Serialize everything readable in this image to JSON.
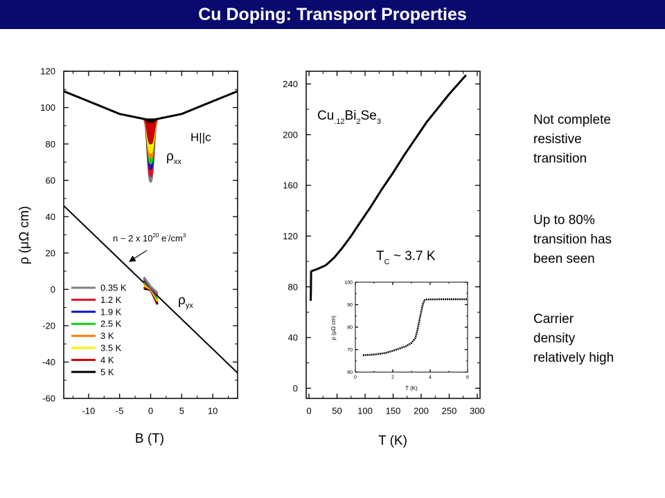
{
  "slide": {
    "title": "Cu Doping: Transport Properties",
    "colors": {
      "title_bar": "#0a0a6e",
      "title_text": "#ffffff"
    }
  },
  "notes": [
    [
      "Not complete",
      "resistive",
      "transition"
    ],
    [
      "Up to 80%",
      "transition has",
      "been seen"
    ],
    [
      "Carrier",
      "density",
      "relatively high"
    ]
  ],
  "chart_data": [
    {
      "type": "line",
      "xlabel": "B (T)",
      "ylabel": "ρ (μΩ cm)",
      "xlim": [
        -14,
        14
      ],
      "ylim": [
        -60,
        120
      ],
      "xticks": [
        -10,
        -5,
        0,
        5,
        10
      ],
      "yticks": [
        -60,
        -40,
        -20,
        0,
        20,
        40,
        60,
        80,
        100,
        120
      ],
      "grid": false,
      "legend_position": "bottom-left",
      "annotations": {
        "field_direction": "H||c",
        "rho_xx": {
          "base": "ρ",
          "sub": "xx"
        },
        "rho_yx": {
          "base": "ρ",
          "sub": "yx"
        },
        "carrier": {
          "prefix": "n ~ 2 x 10",
          "exp": "20",
          "mid": " e",
          "exp2": "-",
          "suffix": "/cm",
          "exp3": "3"
        }
      },
      "series": [
        {
          "name": "0.35 K",
          "color": "#808080",
          "rho_xx_dip_min": 59
        },
        {
          "name": "1.2 K",
          "color": "#e0102a",
          "rho_xx_dip_min": 62
        },
        {
          "name": "1.9 K",
          "color": "#1010c0",
          "rho_xx_dip_min": 66
        },
        {
          "name": "2.5 K",
          "color": "#10d010",
          "rho_xx_dip_min": 69
        },
        {
          "name": "3 K",
          "color": "#ff8000",
          "rho_xx_dip_min": 72
        },
        {
          "name": "3.5 K",
          "color": "#f2f200",
          "rho_xx_dip_min": 75
        },
        {
          "name": "4 K",
          "color": "#cc0000",
          "rho_xx_dip_min": 80
        },
        {
          "name": "5 K",
          "color": "#000000",
          "rho_xx_dip_min": 92
        }
      ],
      "rho_xx_normal_state": {
        "x": [
          -14,
          -10,
          -5,
          0,
          5,
          10,
          14
        ],
        "y": [
          109,
          103.5,
          96.5,
          93,
          96.5,
          103.5,
          109
        ]
      },
      "rho_yx_line": {
        "x": [
          -14,
          14
        ],
        "y": [
          46,
          -46
        ]
      }
    },
    {
      "type": "line",
      "xlabel": "T (K)",
      "ylabel": "",
      "xlim": [
        -5,
        305
      ],
      "ylim": [
        -8,
        250
      ],
      "xticks": [
        0,
        50,
        100,
        150,
        200,
        250,
        300
      ],
      "yticks": [
        0,
        40,
        80,
        120,
        160,
        200,
        240
      ],
      "grid": false,
      "annotations": {
        "compound": {
          "parts": [
            "Cu",
            ".12",
            "Bi",
            "2",
            "Se",
            "3"
          ]
        },
        "tc": {
          "base": "T",
          "sub": "C",
          "rest": " ~ 3.7 K"
        }
      },
      "series": [
        {
          "name": "",
          "x": [
            3,
            3.4,
            3.8,
            5,
            15,
            30,
            45,
            60,
            75,
            90,
            110,
            130,
            150,
            170,
            190,
            210,
            230,
            250,
            270,
            280
          ],
          "y": [
            69,
            76,
            92,
            92.5,
            94,
            97,
            103,
            111,
            120,
            130,
            143,
            157,
            170,
            184,
            197,
            210,
            221,
            232,
            242,
            247
          ]
        }
      ],
      "inset": {
        "xlabel": "T (K)",
        "ylabel": "ρ (μΩ cm)",
        "xlim": [
          0,
          6
        ],
        "ylim": [
          60,
          100
        ],
        "xticks": [
          0,
          2,
          4,
          6
        ],
        "yticks": [
          60,
          70,
          80,
          90,
          100
        ],
        "series": [
          {
            "name": "",
            "x": [
              0.4,
              1.0,
              1.6,
              2.2,
              2.7,
              3.0,
              3.2,
              3.3,
              3.45,
              3.6,
              3.7,
              3.8,
              4.5,
              5.5,
              6.0
            ],
            "y": [
              67.5,
              67.8,
              68.5,
              70,
              71.5,
              73,
              75,
              78,
              84,
              90,
              92,
              92.3,
              92.4,
              92.4,
              92.4
            ]
          }
        ]
      }
    }
  ]
}
